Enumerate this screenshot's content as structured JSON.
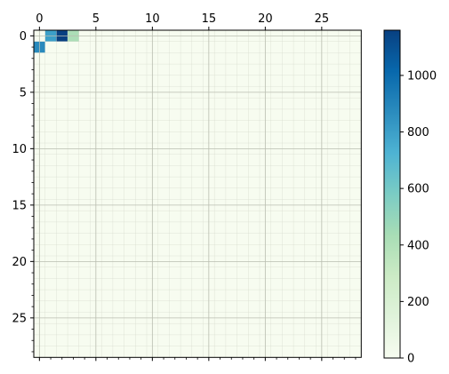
{
  "chart_data": {
    "type": "heatmap",
    "title": "",
    "xlabel": "",
    "ylabel": "",
    "rows": 29,
    "cols": 29,
    "x_ticks": [
      0,
      5,
      10,
      15,
      20,
      25
    ],
    "y_ticks": [
      0,
      5,
      10,
      15,
      20,
      25
    ],
    "x_axis_position": "top",
    "grid": true,
    "minor_grid": true,
    "colormap": "GnBu",
    "vmin": 0,
    "vmax": 1160,
    "colorbar": {
      "ticks": [
        0,
        200,
        400,
        600,
        800,
        1000
      ],
      "placement": "right"
    },
    "default_value": 0,
    "cells": [
      {
        "row": 0,
        "col": 1,
        "value": 800
      },
      {
        "row": 0,
        "col": 2,
        "value": 1160
      },
      {
        "row": 0,
        "col": 3,
        "value": 420
      },
      {
        "row": 1,
        "col": 0,
        "value": 880
      }
    ]
  }
}
